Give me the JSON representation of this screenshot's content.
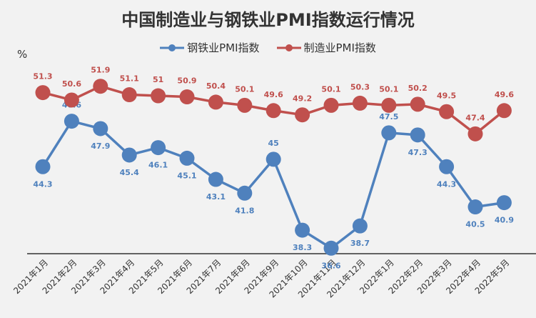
{
  "chart_data": {
    "type": "line",
    "title": "中国制造业与钢铁业PMI指数运行情况",
    "ylabel": "%",
    "legend_position": "top",
    "grid": false,
    "ylim": [
      30,
      56
    ],
    "categories": [
      "2021年1月",
      "2021年2月",
      "2021年3月",
      "2021年4月",
      "2021年5月",
      "2021年6月",
      "2021年7月",
      "2021年8月",
      "2021年9月",
      "2021年10月",
      "2021年11月",
      "2021年12月",
      "2022年1月",
      "2022年2月",
      "2022年3月",
      "2022年4月",
      "2022年5月"
    ],
    "series": [
      {
        "name": "钢铁业PMI指数",
        "color": "#4f81bd",
        "values": [
          44.3,
          48.6,
          47.9,
          45.4,
          46.1,
          45.1,
          43.1,
          41.8,
          45,
          38.3,
          36.6,
          38.7,
          47.5,
          47.3,
          44.3,
          40.5,
          40.9
        ]
      },
      {
        "name": "制造业PMI指数",
        "color": "#c0504d",
        "values": [
          51.3,
          50.6,
          51.9,
          51.1,
          51,
          50.9,
          50.4,
          50.1,
          49.6,
          49.2,
          50.1,
          50.3,
          50.1,
          50.2,
          49.5,
          47.4,
          49.6
        ]
      }
    ]
  }
}
